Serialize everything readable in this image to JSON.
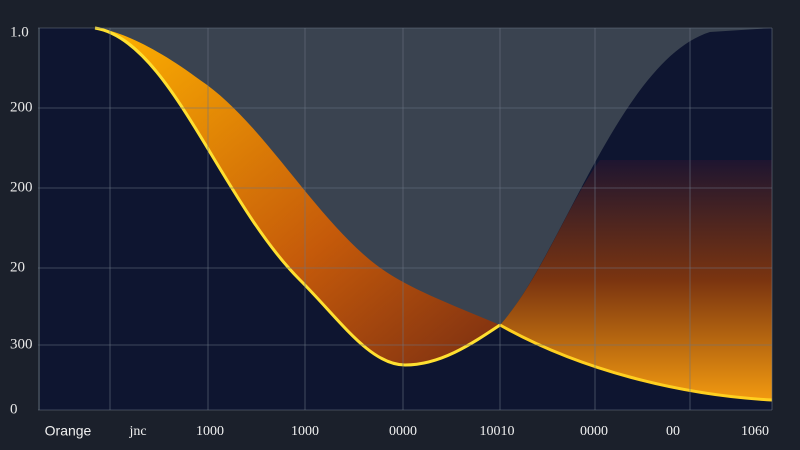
{
  "y_labels": [
    "1.0",
    "200",
    "200",
    "20",
    "300",
    "0"
  ],
  "x_labels": [
    "Orange",
    "jnc",
    "1000",
    "1000",
    "0000",
    "10010",
    "0000",
    "00",
    "1060"
  ]
}
